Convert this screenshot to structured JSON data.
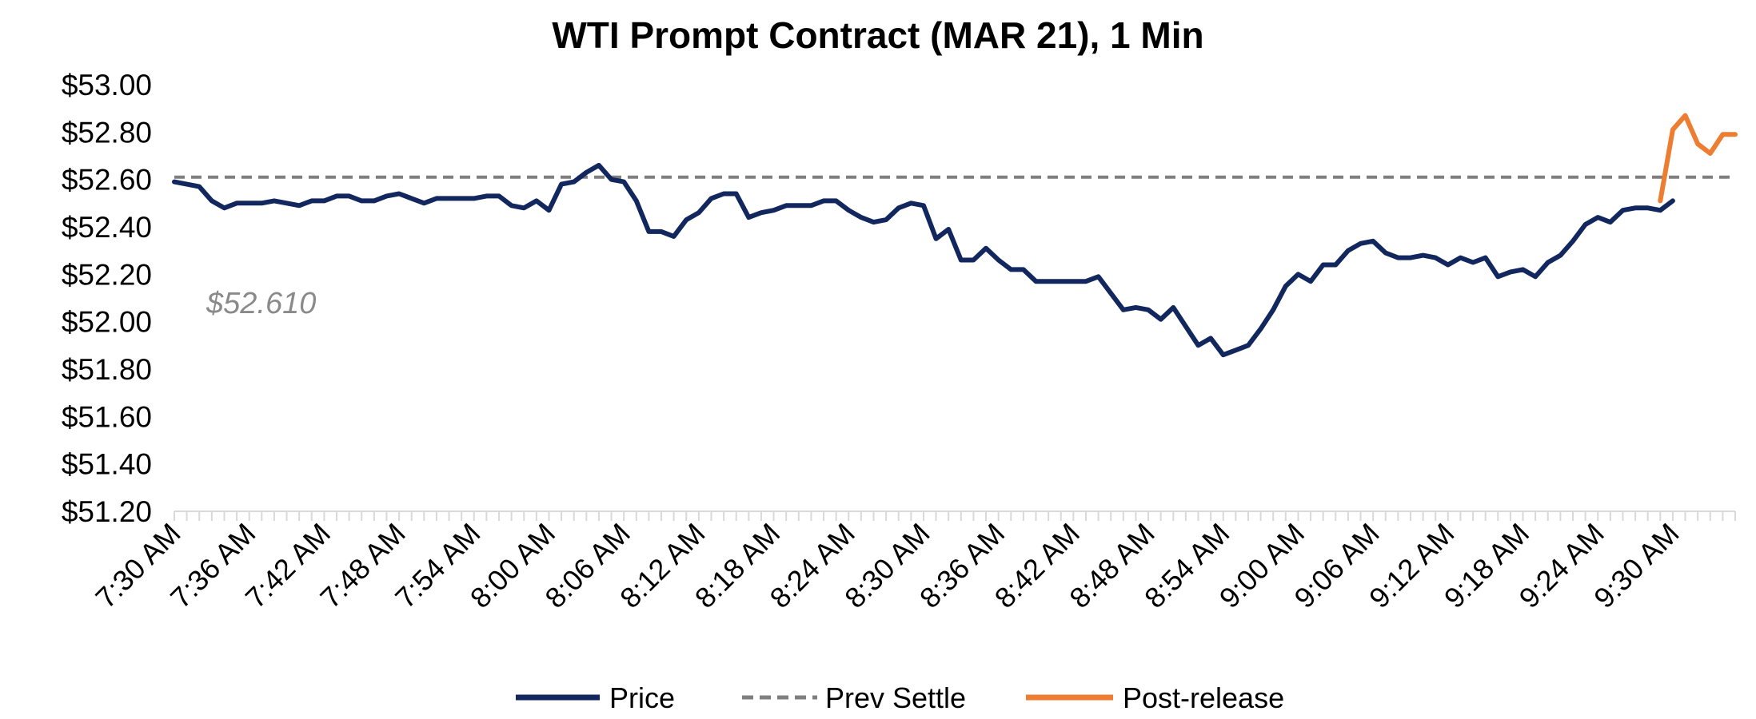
{
  "chart_data": {
    "type": "line",
    "title": "WTI Prompt Contract (MAR 21), 1 Min",
    "ylim": [
      51.2,
      53.0
    ],
    "y_ticks": [
      "$51.20",
      "$51.40",
      "$51.60",
      "$51.80",
      "$52.00",
      "$52.20",
      "$52.40",
      "$52.60",
      "$52.80",
      "$53.00"
    ],
    "y_tick_values": [
      51.2,
      51.4,
      51.6,
      51.8,
      52.0,
      52.2,
      52.4,
      52.6,
      52.8,
      53.0
    ],
    "x_labels": [
      "7:30 AM",
      "7:36 AM",
      "7:42 AM",
      "7:48 AM",
      "7:54 AM",
      "8:00 AM",
      "8:06 AM",
      "8:12 AM",
      "8:18 AM",
      "8:24 AM",
      "8:30 AM",
      "8:36 AM",
      "8:42 AM",
      "8:48 AM",
      "8:54 AM",
      "9:00 AM",
      "9:06 AM",
      "9:12 AM",
      "9:18 AM",
      "9:24 AM",
      "9:30 AM"
    ],
    "x_label_interval_minutes": 6,
    "x_start": "7:30 AM",
    "n_minutes": 125,
    "annotation": "$52.610",
    "series": [
      {
        "name": "Price",
        "color": "#13275f",
        "start_minute": 0,
        "values": [
          52.59,
          52.58,
          52.57,
          52.51,
          52.48,
          52.5,
          52.5,
          52.5,
          52.51,
          52.5,
          52.49,
          52.51,
          52.51,
          52.53,
          52.53,
          52.51,
          52.51,
          52.53,
          52.54,
          52.52,
          52.5,
          52.52,
          52.52,
          52.52,
          52.52,
          52.53,
          52.53,
          52.49,
          52.48,
          52.51,
          52.47,
          52.58,
          52.59,
          52.63,
          52.66,
          52.6,
          52.59,
          52.51,
          52.38,
          52.38,
          52.36,
          52.43,
          52.46,
          52.52,
          52.54,
          52.54,
          52.44,
          52.46,
          52.47,
          52.49,
          52.49,
          52.49,
          52.51,
          52.51,
          52.47,
          52.44,
          52.42,
          52.43,
          52.48,
          52.5,
          52.49,
          52.35,
          52.39,
          52.26,
          52.26,
          52.31,
          52.26,
          52.22,
          52.22,
          52.17,
          52.17,
          52.17,
          52.17,
          52.17,
          52.19,
          52.12,
          52.05,
          52.06,
          52.05,
          52.01,
          52.06,
          51.98,
          51.9,
          51.93,
          51.86,
          51.88,
          51.9,
          51.97,
          52.05,
          52.15,
          52.2,
          52.17,
          52.24,
          52.24,
          52.3,
          52.33,
          52.34,
          52.29,
          52.27,
          52.27,
          52.28,
          52.27,
          52.24,
          52.27,
          52.25,
          52.27,
          52.19,
          52.21,
          52.22,
          52.19,
          52.25,
          52.28,
          52.34,
          52.41,
          52.44,
          52.42,
          52.47,
          52.48,
          52.48,
          52.47,
          52.51
        ]
      },
      {
        "name": "Post-release",
        "color": "#ed7d31",
        "start_minute": 119,
        "values": [
          52.51,
          52.81,
          52.87,
          52.75,
          52.71,
          52.79,
          52.79
        ]
      },
      {
        "name": "Prev Settle",
        "color": "#7f7f7f",
        "style": "dashed",
        "constant": 52.61
      }
    ],
    "legend": [
      "Price",
      "Prev Settle",
      "Post-release"
    ],
    "legend_position": "bottom"
  }
}
